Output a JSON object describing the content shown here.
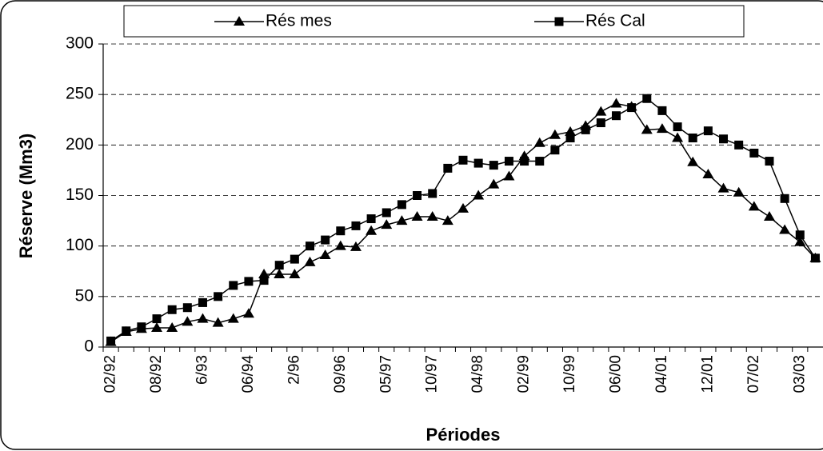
{
  "chart_data": {
    "type": "line",
    "x_label": "Périodes",
    "y_label": "Réserve (Mm3)",
    "categories": [
      "02/92",
      null,
      null,
      "08/92",
      null,
      null,
      "6/93",
      null,
      null,
      "06/94",
      null,
      null,
      "2/96",
      null,
      null,
      "09/96",
      null,
      null,
      "05/97",
      null,
      null,
      "10/97",
      null,
      null,
      "04/98",
      null,
      null,
      "02/99",
      null,
      null,
      "10/99",
      null,
      null,
      "06/00",
      null,
      null,
      "04/01",
      null,
      null,
      "12/01",
      null,
      null,
      "07/02",
      null,
      null,
      "03/03",
      null
    ],
    "series": [
      {
        "name": "Rés mes",
        "color": "#000000",
        "marker": "triangle",
        "values": [
          5,
          15,
          18,
          19,
          19,
          25,
          28,
          24,
          28,
          33,
          72,
          72,
          72,
          84,
          91,
          100,
          99,
          115,
          121,
          125,
          129,
          129,
          125,
          137,
          150,
          161,
          169,
          189,
          202,
          210,
          213,
          219,
          233,
          241,
          238,
          215,
          216,
          207,
          183,
          171,
          157,
          153,
          139,
          129,
          116,
          104,
          88
        ]
      },
      {
        "name": "Rés Cal",
        "color": "#000000",
        "marker": "square",
        "values": [
          6,
          16,
          20,
          28,
          37,
          39,
          44,
          50,
          61,
          65,
          66,
          81,
          87,
          100,
          106,
          115,
          120,
          127,
          133,
          141,
          150,
          152,
          177,
          185,
          182,
          180,
          184,
          184,
          184,
          195,
          207,
          215,
          222,
          229,
          237,
          246,
          234,
          218,
          207,
          214,
          206,
          200,
          192,
          184,
          147,
          111,
          88
        ]
      }
    ],
    "ylim": [
      0,
      300
    ],
    "yticks": [
      0,
      50,
      100,
      150,
      200,
      250,
      300
    ],
    "grid": true,
    "legend": "top"
  }
}
